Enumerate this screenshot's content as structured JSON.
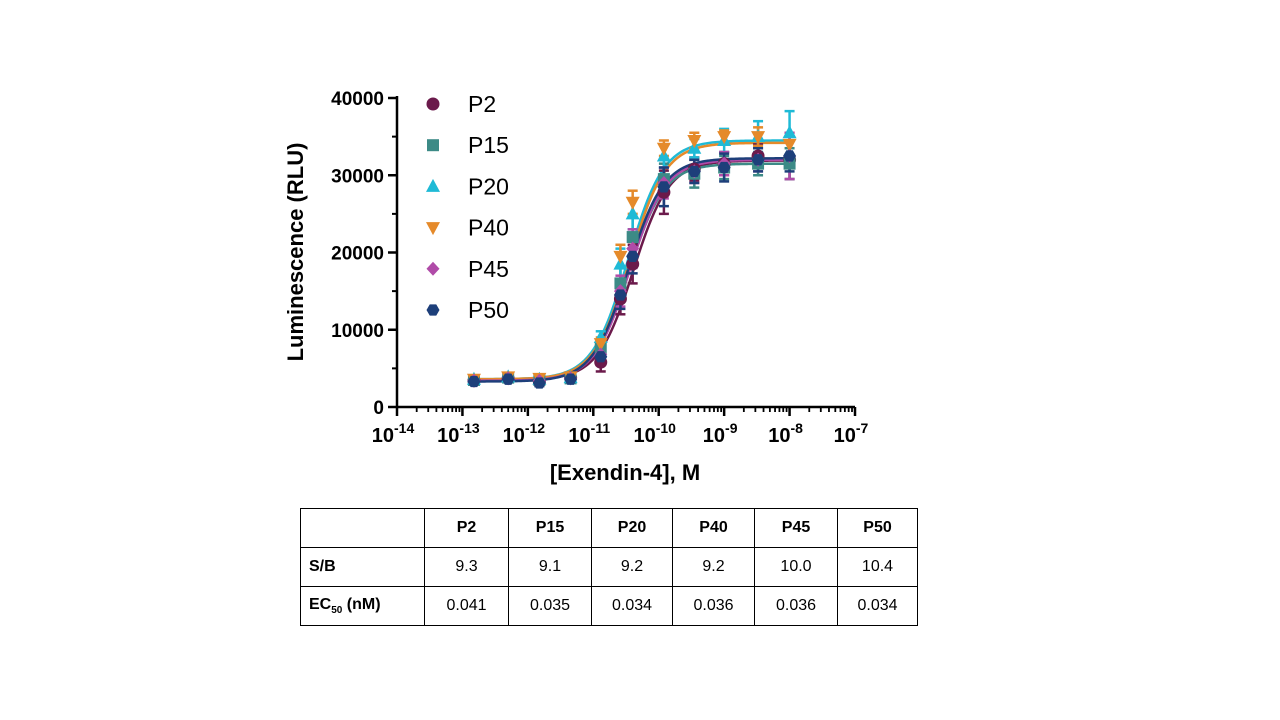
{
  "chart_data": {
    "type": "scatter",
    "xlabel": "[Exendin-4], M",
    "ylabel": "Luminescence (RLU)",
    "x_scale": "log",
    "xlim": [
      1e-14,
      1e-07
    ],
    "ylim": [
      0,
      40000
    ],
    "y_ticks": [
      "0",
      "10000",
      "20000",
      "30000",
      "40000"
    ],
    "x_ticks": [
      {
        "base": "10",
        "exp": "-14"
      },
      {
        "base": "10",
        "exp": "-13"
      },
      {
        "base": "10",
        "exp": "-12"
      },
      {
        "base": "10",
        "exp": "-11"
      },
      {
        "base": "10",
        "exp": "-10"
      },
      {
        "base": "10",
        "exp": "-9"
      },
      {
        "base": "10",
        "exp": "-8"
      },
      {
        "base": "10",
        "exp": "-7"
      }
    ],
    "x": [
      1.5e-13,
      5e-13,
      1.5e-12,
      4.5e-12,
      1.3e-11,
      2.6e-11,
      4e-11,
      1.2e-10,
      3.5e-10,
      1e-09,
      3.3e-09,
      1e-08
    ],
    "legend_position": "top-left",
    "series": [
      {
        "name": "P2",
        "color": "#6b1a4b",
        "marker": "circle",
        "values": [
          3400,
          3700,
          3300,
          3800,
          5800,
          14000,
          18500,
          27800,
          30800,
          31500,
          32500,
          32000
        ],
        "errors": [
          400,
          400,
          500,
          400,
          1200,
          2000,
          2500,
          2800,
          1500,
          1500,
          1500,
          2500
        ],
        "fit": {
          "bottom": 3500,
          "top": 31900,
          "ec50": 4.1e-11,
          "hill": 1.6
        }
      },
      {
        "name": "P15",
        "color": "#3c8a86",
        "marker": "square",
        "values": [
          3500,
          3800,
          3500,
          3700,
          7600,
          16000,
          22000,
          29500,
          30200,
          31000,
          31500,
          31500
        ],
        "errors": [
          300,
          400,
          400,
          300,
          1000,
          2000,
          2500,
          2000,
          1800,
          1500,
          1500,
          2000
        ],
        "fit": {
          "bottom": 3500,
          "top": 31500,
          "ec50": 3.5e-11,
          "hill": 1.6
        }
      },
      {
        "name": "P20",
        "color": "#1fbad6",
        "marker": "triangle-up",
        "values": [
          3600,
          3900,
          3600,
          3800,
          9000,
          18500,
          25000,
          32500,
          33500,
          34500,
          35000,
          35500
        ],
        "errors": [
          300,
          400,
          400,
          300,
          800,
          2000,
          2000,
          1500,
          1200,
          1500,
          2000,
          2800
        ],
        "fit": {
          "bottom": 3600,
          "top": 34500,
          "ec50": 3.4e-11,
          "hill": 1.6
        }
      },
      {
        "name": "P40",
        "color": "#e58a2a",
        "marker": "triangle-down",
        "values": [
          3600,
          3900,
          3700,
          3900,
          8200,
          19500,
          26500,
          33500,
          34500,
          35000,
          35000,
          34000
        ],
        "errors": [
          300,
          400,
          400,
          300,
          800,
          1500,
          1500,
          1000,
          1000,
          800,
          1200,
          1500
        ],
        "fit": {
          "bottom": 3600,
          "top": 34200,
          "ec50": 3.6e-11,
          "hill": 1.6
        }
      },
      {
        "name": "P45",
        "color": "#b04ba8",
        "marker": "diamond",
        "values": [
          3400,
          3700,
          3400,
          3700,
          6800,
          15000,
          20500,
          29000,
          30500,
          31500,
          32000,
          32500
        ],
        "errors": [
          300,
          300,
          400,
          300,
          1000,
          2000,
          2500,
          2000,
          1500,
          1500,
          1500,
          3000
        ],
        "fit": {
          "bottom": 3400,
          "top": 32000,
          "ec50": 3.6e-11,
          "hill": 1.6
        }
      },
      {
        "name": "P50",
        "color": "#1d3f7a",
        "marker": "hexagon",
        "values": [
          3300,
          3600,
          3100,
          3600,
          6500,
          14500,
          19500,
          28500,
          30500,
          31000,
          32000,
          32500
        ],
        "errors": [
          300,
          300,
          400,
          300,
          1000,
          1800,
          2200,
          2500,
          1500,
          1800,
          1500,
          2000
        ],
        "fit": {
          "bottom": 3300,
          "top": 32200,
          "ec50": 3.4e-11,
          "hill": 1.6
        }
      }
    ]
  },
  "table": {
    "headers": [
      "",
      "P2",
      "P15",
      "P20",
      "P40",
      "P45",
      "P50"
    ],
    "rows": [
      {
        "label": "S/B",
        "values": [
          "9.3",
          "9.1",
          "9.2",
          "9.2",
          "10.0",
          "10.4"
        ]
      },
      {
        "label_main": "EC",
        "label_sub": "50",
        "label_tail": " (nM)",
        "values": [
          "0.041",
          "0.035",
          "0.034",
          "0.036",
          "0.036",
          "0.034"
        ]
      }
    ]
  }
}
